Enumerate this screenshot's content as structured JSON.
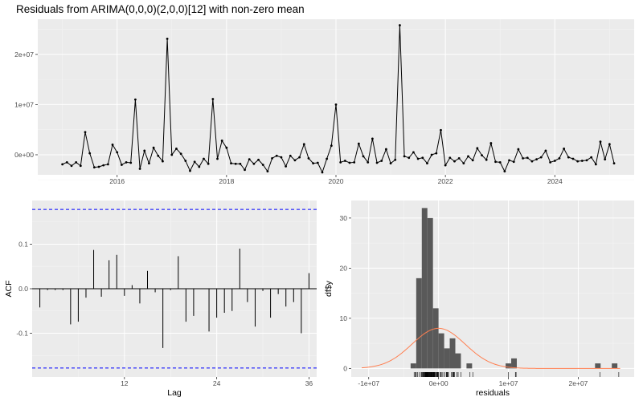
{
  "chart_data": [
    {
      "type": "line",
      "title": "Residuals from ARIMA(0,0,0)(2,0,0)[12] with non-zero mean",
      "xlabel": "",
      "ylabel": "",
      "x_ticks": [
        "2016",
        "2018",
        "2020",
        "2022",
        "2024"
      ],
      "x_tick_values": [
        2016,
        2018,
        2020,
        2022,
        2024
      ],
      "y_ticks": [
        "0e+00",
        "1e+07",
        "2e+07"
      ],
      "y_tick_values": [
        0,
        10000000,
        20000000
      ],
      "xlim": [
        2014.55,
        2025.45
      ],
      "ylim": [
        -4000000,
        27000000
      ],
      "x_start": 2015.0,
      "x_step": 0.08333333,
      "y": [
        -1900000,
        -1500000,
        -2200000,
        -1500000,
        -2200000,
        4500000,
        300000,
        -2500000,
        -2400000,
        -2100000,
        -1900000,
        2000000,
        500000,
        -2000000,
        -1500000,
        -1600000,
        11000000,
        -2800000,
        800000,
        -1700000,
        1400000,
        -200000,
        -1300000,
        23100000,
        0,
        1200000,
        200000,
        -1200000,
        -3200000,
        -1400000,
        -2400000,
        -800000,
        -1800000,
        11100000,
        -800000,
        2800000,
        1400000,
        -1700000,
        -1800000,
        -1800000,
        -3000000,
        -900000,
        -1800000,
        -1000000,
        -2000000,
        -3300000,
        -700000,
        -200000,
        -500000,
        -2300000,
        -200000,
        -1100000,
        -500000,
        2100000,
        -700000,
        -1700000,
        -1600000,
        -3500000,
        -800000,
        1800000,
        10000000,
        -1500000,
        -1200000,
        -1600000,
        -1500000,
        2200000,
        -300000,
        -1500000,
        3200000,
        -1600000,
        -1200000,
        1100000,
        -1700000,
        -1000000,
        25800000,
        -300000,
        -600000,
        500000,
        -800000,
        -600000,
        -1700000,
        0,
        300000,
        4900000,
        -2100000,
        -600000,
        -1300000,
        -700000,
        -1700000,
        -300000,
        -1100000,
        1300000,
        -100000,
        -1000000,
        2300000,
        -1400000,
        -1500000,
        -3300000,
        -1100000,
        -1400000,
        1100000,
        -700000,
        -600000,
        -1300000,
        -900000,
        -500000,
        800000,
        -1500000,
        -1200000,
        -700000,
        1200000,
        -500000,
        -800000,
        -1300000,
        -1200000,
        -1100000,
        -500000,
        -1900000,
        2600000,
        -900000,
        2100000,
        -1700000
      ]
    },
    {
      "type": "bar",
      "title": "",
      "xlabel": "Lag",
      "ylabel": "ACF",
      "x_ticks": [
        "12",
        "24",
        "36"
      ],
      "x_tick_values": [
        12,
        24,
        36
      ],
      "y_ticks": [
        "-0.1",
        "0.0",
        "0.1"
      ],
      "y_tick_values": [
        -0.1,
        0.0,
        0.1
      ],
      "xlim": [
        0,
        37
      ],
      "ylim": [
        -0.198,
        0.198
      ],
      "ci": [
        0.178,
        -0.178
      ],
      "lags": [
        1,
        2,
        3,
        4,
        5,
        6,
        7,
        8,
        9,
        10,
        11,
        12,
        13,
        14,
        15,
        16,
        17,
        18,
        19,
        20,
        21,
        22,
        23,
        24,
        25,
        26,
        27,
        28,
        29,
        30,
        31,
        32,
        33,
        34,
        35,
        36
      ],
      "values": [
        -0.042,
        -0.003,
        -0.003,
        -0.003,
        -0.08,
        -0.074,
        -0.02,
        0.087,
        -0.018,
        0.064,
        0.076,
        -0.016,
        0.008,
        -0.033,
        0.04,
        -0.008,
        -0.133,
        -0.003,
        0.073,
        -0.074,
        -0.061,
        0.0,
        -0.096,
        -0.065,
        -0.054,
        -0.05,
        0.09,
        -0.03,
        -0.085,
        -0.005,
        -0.065,
        -0.012,
        -0.04,
        -0.03,
        -0.1,
        0.035
      ]
    },
    {
      "type": "bar",
      "title": "",
      "xlabel": "residuals",
      "ylabel": "df$y",
      "x_ticks": [
        "-1e+07",
        "0e+00",
        "1e+07",
        "2e+07"
      ],
      "x_tick_values": [
        -10000000,
        0,
        10000000,
        20000000
      ],
      "y_ticks": [
        "0",
        "10",
        "20",
        "30"
      ],
      "y_tick_values": [
        0,
        10,
        20,
        30
      ],
      "xlim": [
        -12500000,
        28000000
      ],
      "ylim": [
        -1.7,
        33.5
      ],
      "bin_width": 800000,
      "bins": [
        {
          "x": -3600000,
          "count": 1
        },
        {
          "x": -2800000,
          "count": 18
        },
        {
          "x": -2000000,
          "count": 32
        },
        {
          "x": -1200000,
          "count": 30
        },
        {
          "x": -400000,
          "count": 12
        },
        {
          "x": 400000,
          "count": 7
        },
        {
          "x": 1200000,
          "count": 4
        },
        {
          "x": 2000000,
          "count": 6
        },
        {
          "x": 2800000,
          "count": 3
        },
        {
          "x": 4400000,
          "count": 1
        },
        {
          "x": 10000000,
          "count": 1
        },
        {
          "x": 10800000,
          "count": 2
        },
        {
          "x": 22800000,
          "count": 1
        },
        {
          "x": 25200000,
          "count": 1
        }
      ],
      "normal_curve": {
        "mean": 0,
        "sd": 3800000,
        "peak": 8.0
      }
    }
  ],
  "colors": {
    "panel": "#ebebeb",
    "grid_major": "#ffffff",
    "grid_minor": "#f5f5f5",
    "line": "#000000",
    "bar": "#595959",
    "ci": "#0000ff",
    "curve": "#ff7f50"
  }
}
